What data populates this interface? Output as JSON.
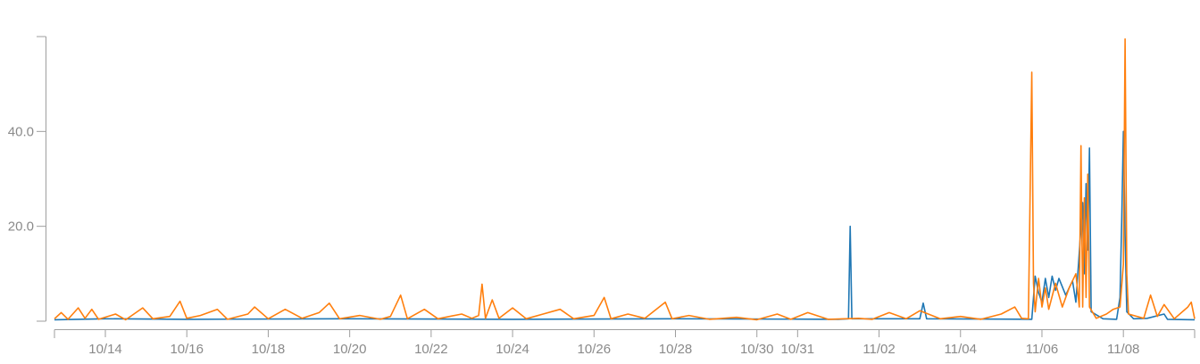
{
  "chart_data": {
    "type": "line",
    "title": "",
    "xlabel": "",
    "ylabel": "",
    "grid": false,
    "legend": "none",
    "xlim": [
      "2023-10-12T18:00",
      "2023-11-09T18:00"
    ],
    "ylim": [
      0,
      60
    ],
    "x_ticks": [
      "10/14",
      "10/16",
      "10/18",
      "10/20",
      "10/22",
      "10/24",
      "10/26",
      "10/28",
      "10/30",
      "10/31",
      "11/02",
      "11/04",
      "11/06",
      "11/08"
    ],
    "x_tick_dates": [
      "2023-10-14",
      "2023-10-16",
      "2023-10-18",
      "2023-10-20",
      "2023-10-22",
      "2023-10-24",
      "2023-10-26",
      "2023-10-28",
      "2023-10-30",
      "2023-10-31",
      "2023-11-02",
      "2023-11-04",
      "2023-11-06",
      "2023-11-08"
    ],
    "y_ticks": [
      20,
      40
    ],
    "y_tick_labels": [
      "20.0",
      "40.0"
    ],
    "series": [
      {
        "color": "#1f77b4",
        "points": [
          [
            "2023-10-12T18:00",
            0.3
          ],
          [
            "2023-10-14T00:00",
            0.5
          ],
          [
            "2023-10-16T00:00",
            0.4
          ],
          [
            "2023-10-20T00:00",
            0.5
          ],
          [
            "2023-10-24T00:00",
            0.4
          ],
          [
            "2023-10-28T00:00",
            0.5
          ],
          [
            "2023-11-01T00:00",
            0.4
          ],
          [
            "2023-11-01T06:00",
            0.5
          ],
          [
            "2023-11-01T07:00",
            20.0
          ],
          [
            "2023-11-01T08:00",
            0.5
          ],
          [
            "2023-11-03T00:00",
            0.5
          ],
          [
            "2023-11-03T02:00",
            3.8
          ],
          [
            "2023-11-03T04:00",
            0.5
          ],
          [
            "2023-11-05T18:00",
            0.4
          ],
          [
            "2023-11-05T20:00",
            9.5
          ],
          [
            "2023-11-05T22:00",
            6.0
          ],
          [
            "2023-11-06T00:00",
            4.0
          ],
          [
            "2023-11-06T02:00",
            9.0
          ],
          [
            "2023-11-06T04:00",
            5.0
          ],
          [
            "2023-11-06T06:00",
            9.5
          ],
          [
            "2023-11-06T08:00",
            6.5
          ],
          [
            "2023-11-06T10:00",
            9.0
          ],
          [
            "2023-11-06T14:00",
            5.5
          ],
          [
            "2023-11-06T18:00",
            8.5
          ],
          [
            "2023-11-06T20:00",
            4.0
          ],
          [
            "2023-11-07T00:00",
            25.0
          ],
          [
            "2023-11-07T01:00",
            10.0
          ],
          [
            "2023-11-07T02:00",
            29.0
          ],
          [
            "2023-11-07T03:00",
            15.0
          ],
          [
            "2023-11-07T04:00",
            36.5
          ],
          [
            "2023-11-07T05:00",
            2.0
          ],
          [
            "2023-11-07T12:00",
            0.5
          ],
          [
            "2023-11-07T20:00",
            0.4
          ],
          [
            "2023-11-07T22:00",
            5.0
          ],
          [
            "2023-11-07T23:00",
            21.0
          ],
          [
            "2023-11-08T00:00",
            40.0
          ],
          [
            "2023-11-08T01:00",
            18.0
          ],
          [
            "2023-11-08T02:00",
            2.0
          ],
          [
            "2023-11-08T06:00",
            0.5
          ],
          [
            "2023-11-08T14:00",
            0.6
          ],
          [
            "2023-11-09T00:00",
            1.5
          ],
          [
            "2023-11-09T02:00",
            0.4
          ],
          [
            "2023-11-09T18:00",
            0.3
          ]
        ]
      },
      {
        "color": "#ff7f0e",
        "points": [
          [
            "2023-10-12T18:00",
            0.5
          ],
          [
            "2023-10-12T22:00",
            1.8
          ],
          [
            "2023-10-13T02:00",
            0.4
          ],
          [
            "2023-10-13T08:00",
            2.8
          ],
          [
            "2023-10-13T12:00",
            0.6
          ],
          [
            "2023-10-13T16:00",
            2.5
          ],
          [
            "2023-10-13T20:00",
            0.4
          ],
          [
            "2023-10-14T06:00",
            1.5
          ],
          [
            "2023-10-14T12:00",
            0.3
          ],
          [
            "2023-10-14T22:00",
            2.8
          ],
          [
            "2023-10-15T04:00",
            0.5
          ],
          [
            "2023-10-15T14:00",
            1.0
          ],
          [
            "2023-10-15T20:00",
            4.2
          ],
          [
            "2023-10-16T00:00",
            0.6
          ],
          [
            "2023-10-16T08:00",
            1.2
          ],
          [
            "2023-10-16T18:00",
            2.5
          ],
          [
            "2023-10-17T00:00",
            0.4
          ],
          [
            "2023-10-17T12:00",
            1.5
          ],
          [
            "2023-10-17T16:00",
            3.0
          ],
          [
            "2023-10-18T00:00",
            0.5
          ],
          [
            "2023-10-18T10:00",
            2.5
          ],
          [
            "2023-10-18T20:00",
            0.6
          ],
          [
            "2023-10-19T06:00",
            1.8
          ],
          [
            "2023-10-19T12:00",
            3.8
          ],
          [
            "2023-10-19T18:00",
            0.5
          ],
          [
            "2023-10-20T06:00",
            1.2
          ],
          [
            "2023-10-20T18:00",
            0.4
          ],
          [
            "2023-10-21T00:00",
            1.0
          ],
          [
            "2023-10-21T06:00",
            5.5
          ],
          [
            "2023-10-21T10:00",
            0.5
          ],
          [
            "2023-10-21T20:00",
            2.5
          ],
          [
            "2023-10-22T04:00",
            0.5
          ],
          [
            "2023-10-22T18:00",
            1.5
          ],
          [
            "2023-10-23T00:00",
            0.6
          ],
          [
            "2023-10-23T04:00",
            1.2
          ],
          [
            "2023-10-23T06:00",
            7.8
          ],
          [
            "2023-10-23T08:00",
            0.6
          ],
          [
            "2023-10-23T12:00",
            4.5
          ],
          [
            "2023-10-23T16:00",
            0.6
          ],
          [
            "2023-10-24T00:00",
            2.8
          ],
          [
            "2023-10-24T08:00",
            0.5
          ],
          [
            "2023-10-24T18:00",
            1.5
          ],
          [
            "2023-10-25T04:00",
            2.5
          ],
          [
            "2023-10-25T12:00",
            0.5
          ],
          [
            "2023-10-26T00:00",
            1.2
          ],
          [
            "2023-10-26T06:00",
            5.0
          ],
          [
            "2023-10-26T10:00",
            0.5
          ],
          [
            "2023-10-26T20:00",
            1.5
          ],
          [
            "2023-10-27T06:00",
            0.6
          ],
          [
            "2023-10-27T18:00",
            4.0
          ],
          [
            "2023-10-27T22:00",
            0.5
          ],
          [
            "2023-10-28T08:00",
            1.2
          ],
          [
            "2023-10-28T20:00",
            0.4
          ],
          [
            "2023-10-29T12:00",
            0.8
          ],
          [
            "2023-10-30T00:00",
            0.3
          ],
          [
            "2023-10-30T12:00",
            1.5
          ],
          [
            "2023-10-30T20:00",
            0.4
          ],
          [
            "2023-10-31T06:00",
            1.8
          ],
          [
            "2023-10-31T18:00",
            0.4
          ],
          [
            "2023-11-01T12:00",
            0.6
          ],
          [
            "2023-11-01T20:00",
            0.4
          ],
          [
            "2023-11-02T06:00",
            1.8
          ],
          [
            "2023-11-02T16:00",
            0.5
          ],
          [
            "2023-11-03T00:00",
            2.2
          ],
          [
            "2023-11-03T12:00",
            0.5
          ],
          [
            "2023-11-04T00:00",
            1.0
          ],
          [
            "2023-11-04T12:00",
            0.4
          ],
          [
            "2023-11-05T00:00",
            1.5
          ],
          [
            "2023-11-05T08:00",
            3.0
          ],
          [
            "2023-11-05T12:00",
            0.6
          ],
          [
            "2023-11-05T16:00",
            0.5
          ],
          [
            "2023-11-05T18:00",
            52.5
          ],
          [
            "2023-11-05T19:00",
            8.0
          ],
          [
            "2023-11-05T20:00",
            2.0
          ],
          [
            "2023-11-05T22:00",
            9.0
          ],
          [
            "2023-11-06T00:00",
            3.0
          ],
          [
            "2023-11-06T02:00",
            7.0
          ],
          [
            "2023-11-06T04:00",
            2.5
          ],
          [
            "2023-11-06T08:00",
            8.0
          ],
          [
            "2023-11-06T12:00",
            3.0
          ],
          [
            "2023-11-06T16:00",
            7.0
          ],
          [
            "2023-11-06T20:00",
            10.0
          ],
          [
            "2023-11-06T22:00",
            3.0
          ],
          [
            "2023-11-06T23:00",
            37.0
          ],
          [
            "2023-11-07T00:00",
            3.0
          ],
          [
            "2023-11-07T01:00",
            26.0
          ],
          [
            "2023-11-07T02:00",
            5.0
          ],
          [
            "2023-11-07T03:00",
            31.0
          ],
          [
            "2023-11-07T04:00",
            3.0
          ],
          [
            "2023-11-07T08:00",
            0.6
          ],
          [
            "2023-11-07T14:00",
            1.5
          ],
          [
            "2023-11-07T18:00",
            2.5
          ],
          [
            "2023-11-07T22:00",
            3.0
          ],
          [
            "2023-11-08T00:00",
            12.0
          ],
          [
            "2023-11-08T01:00",
            59.5
          ],
          [
            "2023-11-08T02:00",
            10.0
          ],
          [
            "2023-11-08T03:00",
            1.5
          ],
          [
            "2023-11-08T12:00",
            0.6
          ],
          [
            "2023-11-08T16:00",
            5.5
          ],
          [
            "2023-11-08T20:00",
            1.0
          ],
          [
            "2023-11-09T00:00",
            3.5
          ],
          [
            "2023-11-09T06:00",
            0.5
          ],
          [
            "2023-11-09T14:00",
            3.0
          ],
          [
            "2023-11-09T16:00",
            4.0
          ],
          [
            "2023-11-09T18:00",
            0.5
          ]
        ]
      }
    ]
  }
}
